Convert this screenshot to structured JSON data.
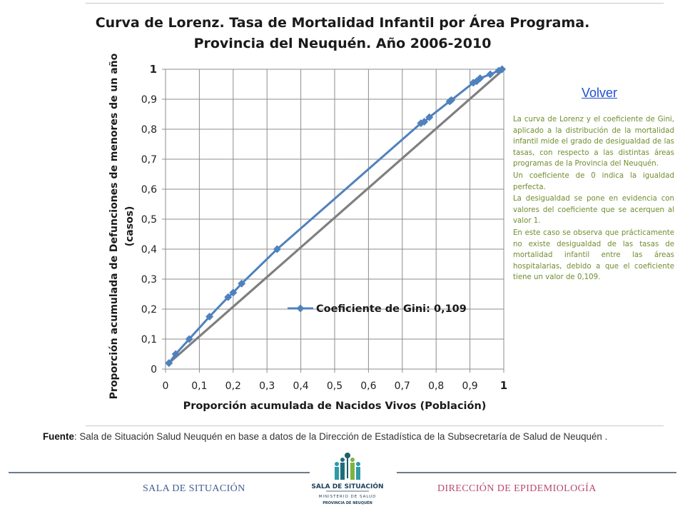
{
  "chart_data": {
    "type": "line",
    "title": [
      "Curva de Lorenz. Tasa de Mortalidad Infantil por Área Programa.",
      "Provincia del Neuquén. Año 2006-2010"
    ],
    "xlabel": "Proporción acumulada de Nacidos Vivos (Población)",
    "ylabel": [
      "Proporción acumulada de Defunciones de menores de un año",
      "(casos)"
    ],
    "xlim": [
      0,
      1
    ],
    "ylim": [
      0,
      1
    ],
    "x_ticks": [
      "0",
      "0,1",
      "0,2",
      "0,3",
      "0,4",
      "0,5",
      "0,6",
      "0,7",
      "0,8",
      "0,9",
      "1"
    ],
    "y_ticks": [
      "0",
      "0,1",
      "0,2",
      "0,3",
      "0,4",
      "0,5",
      "0,6",
      "0,7",
      "0,8",
      "0,9",
      "1"
    ],
    "grid": "vertical and horizontal",
    "legend_position": "right-middle",
    "series": [
      {
        "name": "Coeficiente de Gini: 0,109",
        "color": "#4f81bd",
        "marker": "diamond",
        "points": [
          [
            0.01,
            0.02
          ],
          [
            0.03,
            0.05
          ],
          [
            0.07,
            0.1
          ],
          [
            0.13,
            0.175
          ],
          [
            0.185,
            0.24
          ],
          [
            0.2,
            0.255
          ],
          [
            0.225,
            0.285
          ],
          [
            0.33,
            0.4
          ],
          [
            0.755,
            0.82
          ],
          [
            0.765,
            0.825
          ],
          [
            0.78,
            0.84
          ],
          [
            0.84,
            0.893
          ],
          [
            0.845,
            0.897
          ],
          [
            0.91,
            0.955
          ],
          [
            0.92,
            0.96
          ],
          [
            0.93,
            0.97
          ],
          [
            0.96,
            0.983
          ],
          [
            0.985,
            0.995
          ],
          [
            0.995,
            1.0
          ]
        ]
      },
      {
        "name": "",
        "color": "#7f7f7f",
        "marker": "none",
        "points": [
          [
            0.01,
            0.02
          ],
          [
            1.0,
            1.0
          ]
        ]
      }
    ]
  },
  "links": {
    "back": "Volver"
  },
  "notes": [
    "La curva de Lorenz y el coeficiente de Gini, aplicado a la distribución de la mortalidad infantil mide el grado de desigualdad de las tasas, con respecto a las distintas áreas programas de la Provincia del Neuquén.",
    "Un coeficiente de 0 indica la igualdad perfecta.",
    "La desigualdad se pone en evidencia con valores del coeficiente que se acerquen al valor 1.",
    "En este caso se observa que prácticamente no existe desigualdad de las tasas de mortalidad infantil entre las áreas hospitalarias, debido a que el coeficiente tiene un valor de 0,109."
  ],
  "source": {
    "label": "Fuente",
    "text": ": Sala de Situación Salud Neuquén en base a datos de la Dirección de Estadística de la Subsecretaría de Salud de Neuquén ."
  },
  "footer": {
    "left": "SALA DE SITUACIÓN",
    "right": "DIRECCIÓN DE EPIDEMIOLOGÍA",
    "logo": {
      "line1": "SALA DE SITUACIÓN",
      "line2": "MINISTERIO DE SALUD",
      "line3": "PROVINCIA DE NEUQUÉN"
    }
  },
  "colors": {
    "curve": "#4f81bd",
    "equality": "#7f7f7f",
    "grid": "#8c8c8c",
    "notes": "#6f8d2e",
    "link": "#1f4fcf"
  }
}
